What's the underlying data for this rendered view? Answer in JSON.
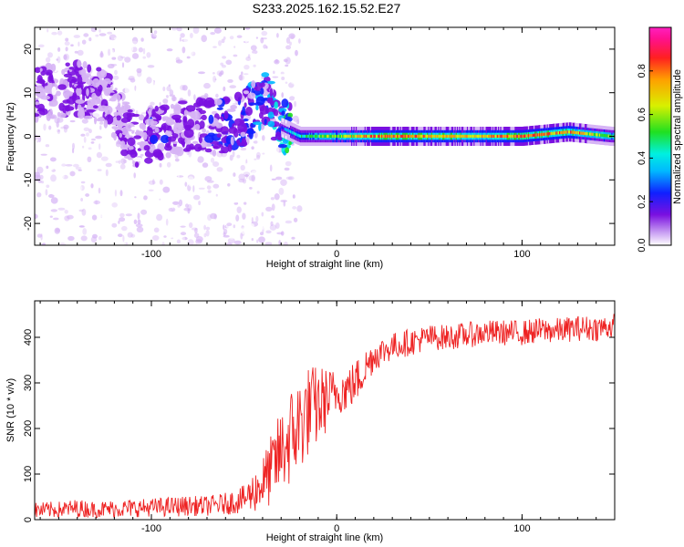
{
  "title": "S233.2025.162.15.52.E27",
  "chart_data": [
    {
      "type": "heatmap",
      "xlabel": "Height of straight line (km)",
      "ylabel": "Frequency (Hz)",
      "xlim": [
        -163,
        150
      ],
      "ylim": [
        -25,
        25
      ],
      "xticks": [
        -100,
        0,
        100
      ],
      "yticks": [
        -20,
        -10,
        0,
        10,
        20
      ],
      "grid": false,
      "colormap": "rainbow (white-purple-blue-cyan-green-yellow-red-magenta)",
      "colorbar": {
        "label": "Normalized spectral amplitude",
        "range": [
          0,
          1
        ],
        "ticks": [
          "0.0",
          "0.2",
          "0.4",
          "0.6",
          "0.8"
        ]
      },
      "ridge": {
        "description": "noisy broadband purple energy for heights below about -25 km; narrow band at 0 Hz with high amplitude above -25 km",
        "x": [
          -155,
          -140,
          -125,
          -110,
          -95,
          -80,
          -65,
          -50,
          -38,
          -30,
          -20,
          0,
          25,
          50,
          75,
          100,
          125,
          148
        ],
        "freq_center": [
          10,
          11,
          9,
          -1,
          1,
          3,
          2,
          4,
          9,
          2,
          0,
          0,
          0,
          0,
          0,
          0,
          1,
          0
        ],
        "amplitude": [
          0.12,
          0.15,
          0.1,
          0.14,
          0.16,
          0.14,
          0.18,
          0.2,
          0.25,
          0.3,
          0.5,
          0.65,
          0.85,
          0.8,
          0.75,
          0.85,
          0.8,
          0.6
        ]
      }
    },
    {
      "type": "line",
      "xlabel": "Height of straight line (km)",
      "ylabel": "SNR (10 * v/v)",
      "xlim": [
        -163,
        150
      ],
      "ylim": [
        0,
        480
      ],
      "xticks": [
        -100,
        0,
        100
      ],
      "yticks": [
        0,
        100,
        200,
        300,
        400
      ],
      "grid": false,
      "color": "#ee2222",
      "series": [
        {
          "x": [
            -163,
            -150,
            -140,
            -130,
            -120,
            -110,
            -100,
            -90,
            -80,
            -70,
            -60,
            -55,
            -50,
            -45,
            -40,
            -35,
            -30,
            -25,
            -20,
            -15,
            -10,
            -5,
            0,
            5,
            10,
            15,
            20,
            30,
            40,
            50,
            60,
            70,
            80,
            90,
            100,
            110,
            120,
            130,
            140,
            150
          ],
          "y": [
            20,
            22,
            25,
            22,
            24,
            25,
            27,
            28,
            30,
            30,
            35,
            40,
            45,
            60,
            80,
            110,
            150,
            180,
            210,
            240,
            250,
            265,
            280,
            285,
            300,
            330,
            360,
            380,
            390,
            400,
            400,
            405,
            410,
            410,
            410,
            415,
            415,
            420,
            420,
            425
          ],
          "noise": [
            18,
            18,
            20,
            18,
            20,
            20,
            20,
            22,
            22,
            22,
            24,
            28,
            30,
            45,
            60,
            80,
            95,
            110,
            110,
            100,
            90,
            70,
            50,
            50,
            50,
            45,
            35,
            30,
            30,
            28,
            28,
            28,
            28,
            28,
            28,
            28,
            28,
            28,
            28,
            28
          ]
        }
      ]
    }
  ]
}
